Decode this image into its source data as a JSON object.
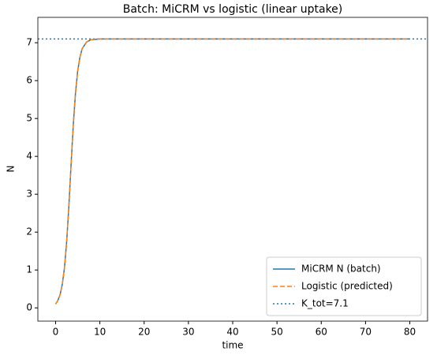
{
  "chart_data": {
    "type": "line",
    "title": "Batch: MiCRM vs logistic (linear uptake)",
    "x_label": "time",
    "y_label": "N",
    "x": [
      0,
      0.5,
      1,
      1.5,
      2,
      2.5,
      3,
      3.5,
      4,
      4.5,
      5,
      5.5,
      6,
      7,
      8,
      9,
      10,
      15,
      20,
      30,
      40,
      50,
      60,
      70,
      80
    ],
    "series": [
      {
        "name": "MiCRM N (batch)",
        "color": "#1f77b4",
        "style": "solid",
        "values": [
          0.1,
          0.19,
          0.34,
          0.61,
          1.05,
          1.74,
          2.68,
          3.78,
          4.83,
          5.67,
          6.26,
          6.62,
          6.84,
          7.02,
          7.08,
          7.09,
          7.1,
          7.1,
          7.1,
          7.1,
          7.1,
          7.1,
          7.1,
          7.1,
          7.1
        ]
      },
      {
        "name": "Logistic (predicted)",
        "color": "#ff7f0e",
        "style": "dashed",
        "values": [
          0.1,
          0.19,
          0.34,
          0.61,
          1.05,
          1.74,
          2.68,
          3.78,
          4.83,
          5.67,
          6.26,
          6.62,
          6.84,
          7.02,
          7.08,
          7.09,
          7.1,
          7.1,
          7.1,
          7.1,
          7.1,
          7.1,
          7.1,
          7.1,
          7.1
        ]
      }
    ],
    "hline": {
      "name": "K_tot=7.1",
      "value": 7.1,
      "color": "#1f77b4",
      "style": "dotted"
    },
    "xlim": [
      -4,
      84
    ],
    "xticks": [
      0,
      10,
      20,
      30,
      40,
      50,
      60,
      70,
      80
    ],
    "ylim": [
      -0.35,
      7.67
    ],
    "yticks": [
      0,
      1,
      2,
      3,
      4,
      5,
      6,
      7
    ],
    "legend": "lower right"
  }
}
